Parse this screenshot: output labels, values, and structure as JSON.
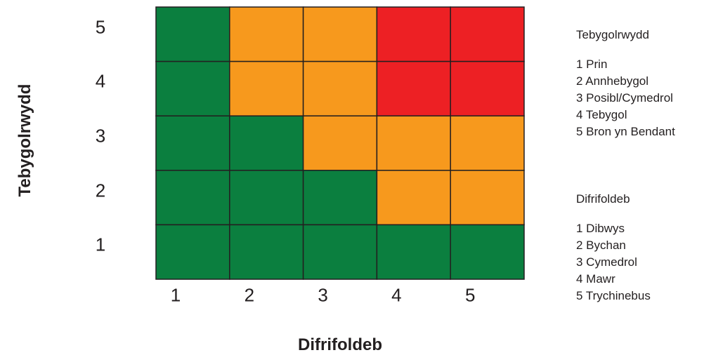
{
  "chart_data": {
    "type": "heatmap",
    "title": "",
    "xlabel": "Difrifoldeb",
    "ylabel": "Tebygolrwydd",
    "x_ticks": [
      "1",
      "2",
      "3",
      "4",
      "5"
    ],
    "y_ticks": [
      "1",
      "2",
      "3",
      "4",
      "5"
    ],
    "risk_colors": {
      "green": "#0b7f3f",
      "orange": "#f7991d",
      "red": "#ed2024"
    },
    "cells_by_row_top_to_bottom": [
      [
        "green",
        "orange",
        "orange",
        "red",
        "red"
      ],
      [
        "green",
        "orange",
        "orange",
        "red",
        "red"
      ],
      [
        "green",
        "green",
        "orange",
        "orange",
        "orange"
      ],
      [
        "green",
        "green",
        "green",
        "orange",
        "orange"
      ],
      [
        "green",
        "green",
        "green",
        "green",
        "green"
      ]
    ],
    "grid_line_color": "#231f20"
  },
  "legend": {
    "likelihood": {
      "heading": "Tebygolrwydd",
      "items": [
        "1 Prin",
        "2 Annhebygol",
        "3 Posibl/Cymedrol",
        "4 Tebygol",
        "5 Bron yn Bendant"
      ]
    },
    "severity": {
      "heading": "Difrifoldeb",
      "items": [
        "1 Dibwys",
        "2 Bychan",
        "3 Cymedrol",
        "4 Mawr",
        "5 Trychinebus"
      ]
    }
  }
}
